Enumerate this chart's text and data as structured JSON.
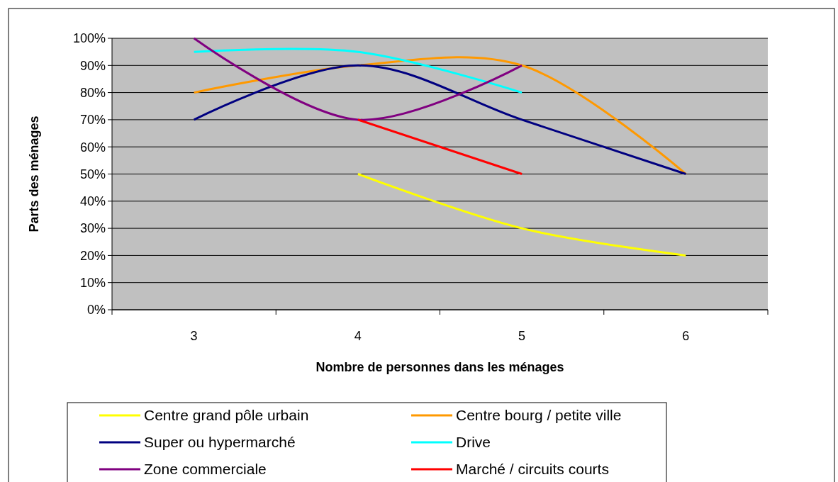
{
  "chart_data": {
    "type": "line",
    "xlabel": "Nombre de personnes dans les ménages",
    "ylabel": "Parts des ménages",
    "categories": [
      "3",
      "4",
      "5",
      "6"
    ],
    "ylim": [
      0,
      100
    ],
    "yticks": [
      {
        "value": 0,
        "label": "0%"
      },
      {
        "value": 10,
        "label": "10%"
      },
      {
        "value": 20,
        "label": "20%"
      },
      {
        "value": 30,
        "label": "30%"
      },
      {
        "value": 40,
        "label": "40%"
      },
      {
        "value": 50,
        "label": "50%"
      },
      {
        "value": 60,
        "label": "60%"
      },
      {
        "value": 70,
        "label": "70%"
      },
      {
        "value": 80,
        "label": "80%"
      },
      {
        "value": 90,
        "label": "90%"
      },
      {
        "value": 100,
        "label": "100%"
      }
    ],
    "grid": "y",
    "legend": "bottom",
    "marker": "none",
    "line_style": "solid",
    "series": [
      {
        "name": "Centre grand pôle urbain",
        "color": "#ffff00",
        "values": [
          null,
          50,
          30,
          20
        ]
      },
      {
        "name": "Centre bourg / petite ville",
        "color": "#ff9900",
        "values": [
          80,
          90,
          90,
          50
        ]
      },
      {
        "name": "Super ou hypermarché",
        "color": "#000080",
        "values": [
          70,
          90,
          70,
          50
        ]
      },
      {
        "name": "Drive",
        "color": "#00ffff",
        "values": [
          95,
          95,
          80,
          null
        ]
      },
      {
        "name": "Zone commerciale",
        "color": "#800080",
        "values": [
          100,
          70,
          90,
          null
        ]
      },
      {
        "name": "Marché / circuits courts",
        "color": "#ff0000",
        "values": [
          null,
          70,
          50,
          null
        ]
      }
    ]
  }
}
